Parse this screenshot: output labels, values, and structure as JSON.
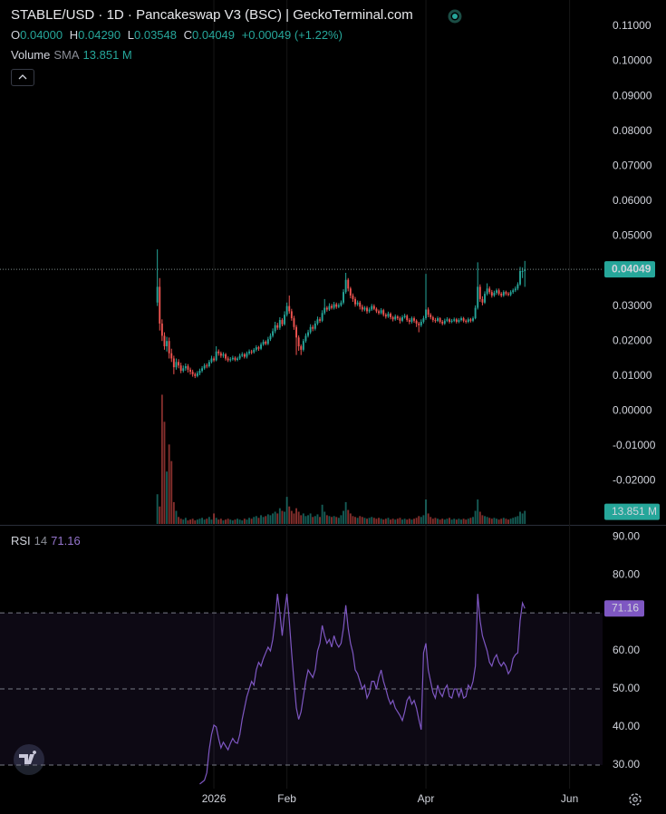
{
  "chart_data": {
    "type": "candlestick",
    "title": "STABLE/USD · 1D · Pancakeswap V3 (BSC) | GeckoTerminal.com",
    "ohlc_legend": [
      [
        "O",
        "0.04000"
      ],
      [
        "H",
        "0.04290"
      ],
      [
        "L",
        "0.03548"
      ],
      [
        "C",
        "0.04049"
      ]
    ],
    "change": "+0.00049 (+1.22%)",
    "volume_title": "Volume",
    "volume_sma_label": "SMA",
    "volume_sma": {
      "value": 13851000,
      "label": "13.851 M"
    },
    "rsi_title": "RSI",
    "rsi_period": 14,
    "up_color": "#26a69a",
    "down_color": "#ef5350",
    "rsi_color": "#7e57c2",
    "xlim": [
      -66.8,
      189
    ],
    "xticks": [
      {
        "value": 24,
        "label": "2026"
      },
      {
        "value": 55,
        "label": "Feb"
      },
      {
        "value": 114,
        "label": "Apr"
      },
      {
        "value": 175,
        "label": "Jun"
      }
    ],
    "ylim": [
      -0.0323,
      0.1175
    ],
    "yticks": [
      {
        "value": 0.11,
        "label": "0.11000"
      },
      {
        "value": 0.1,
        "label": "0.10000"
      },
      {
        "value": 0.09,
        "label": "0.09000"
      },
      {
        "value": 0.08,
        "label": "0.08000"
      },
      {
        "value": 0.07,
        "label": "0.07000"
      },
      {
        "value": 0.06,
        "label": "0.06000"
      },
      {
        "value": 0.05,
        "label": "0.05000"
      },
      {
        "value": 0.04,
        "label": "0.04000"
      },
      {
        "value": 0.03,
        "label": "0.03000"
      },
      {
        "value": 0.02,
        "label": "0.02000"
      },
      {
        "value": 0.01,
        "label": "0.01000"
      },
      {
        "value": 0,
        "label": "0.00000"
      },
      {
        "value": -0.01,
        "label": "-0.01000"
      },
      {
        "value": -0.02,
        "label": "-0.02000"
      }
    ],
    "y2lim": [
      0,
      600000000
    ],
    "rsi_ylim": [
      23.8,
      92.9
    ],
    "rsi_yticks": [
      {
        "value": 90,
        "label": "90.00"
      },
      {
        "value": 80,
        "label": "80.00"
      },
      {
        "value": 70,
        "label": "70.00"
      },
      {
        "value": 60,
        "label": "60.00"
      },
      {
        "value": 50,
        "label": "50.00"
      },
      {
        "value": 40,
        "label": "40.00"
      },
      {
        "value": 30,
        "label": "30.00"
      }
    ],
    "rsi_band": [
      30,
      70
    ],
    "rsi_midline": 50,
    "open": [
      0.031,
      0.0355,
      0.025,
      0.0215,
      0.0185,
      0.02,
      0.0165,
      0.015,
      0.0125,
      0.014,
      0.013,
      0.0115,
      0.0122,
      0.0128,
      0.0118,
      0.0112,
      0.0105,
      0.01,
      0.0108,
      0.0115,
      0.0122,
      0.013,
      0.0128,
      0.014,
      0.015,
      0.0145,
      0.017,
      0.0165,
      0.0158,
      0.0162,
      0.015,
      0.0145,
      0.0148,
      0.0152,
      0.0146,
      0.015,
      0.0158,
      0.0162,
      0.0155,
      0.0165,
      0.017,
      0.0168,
      0.0175,
      0.0182,
      0.0178,
      0.019,
      0.0198,
      0.0192,
      0.0205,
      0.0215,
      0.0228,
      0.0245,
      0.0238,
      0.026,
      0.0248,
      0.0275,
      0.03,
      0.0285,
      0.0265,
      0.024,
      0.021,
      0.0185,
      0.0175,
      0.02,
      0.0215,
      0.0225,
      0.024,
      0.0235,
      0.025,
      0.0262,
      0.0258,
      0.028,
      0.0295,
      0.029,
      0.03,
      0.0295,
      0.0305,
      0.0298,
      0.0302,
      0.031,
      0.034,
      0.0375,
      0.035,
      0.033,
      0.032,
      0.0305,
      0.031,
      0.0298,
      0.029,
      0.0295,
      0.0285,
      0.029,
      0.03,
      0.0292,
      0.0285,
      0.028,
      0.0288,
      0.0275,
      0.027,
      0.0278,
      0.0268,
      0.0262,
      0.027,
      0.0265,
      0.0258,
      0.0268,
      0.0272,
      0.026,
      0.0255,
      0.0265,
      0.0258,
      0.025,
      0.0245,
      0.0255,
      0.0265,
      0.029,
      0.0275,
      0.0268,
      0.026,
      0.0258,
      0.0265,
      0.0255,
      0.025,
      0.0258,
      0.0262,
      0.0255,
      0.0258,
      0.0262,
      0.0255,
      0.026,
      0.0265,
      0.0258,
      0.0255,
      0.0262,
      0.0258,
      0.0265,
      0.0295,
      0.0355,
      0.032,
      0.031,
      0.0335,
      0.035,
      0.034,
      0.033,
      0.0338,
      0.0345,
      0.0335,
      0.033,
      0.034,
      0.0335,
      0.0332,
      0.034,
      0.0345,
      0.035,
      0.0362,
      0.04,
      0.04
    ],
    "high": [
      0.0462,
      0.038,
      0.0262,
      0.0225,
      0.0212,
      0.021,
      0.0178,
      0.0158,
      0.015,
      0.0148,
      0.0138,
      0.013,
      0.0136,
      0.0134,
      0.0124,
      0.0118,
      0.011,
      0.0114,
      0.0121,
      0.0128,
      0.0136,
      0.0136,
      0.0146,
      0.0158,
      0.0156,
      0.0185,
      0.0176,
      0.017,
      0.0168,
      0.0166,
      0.0156,
      0.0154,
      0.0158,
      0.0156,
      0.0155,
      0.0164,
      0.0168,
      0.0166,
      0.017,
      0.0176,
      0.0175,
      0.018,
      0.0188,
      0.0186,
      0.0196,
      0.0204,
      0.0202,
      0.0212,
      0.0222,
      0.0236,
      0.0255,
      0.0252,
      0.0268,
      0.0265,
      0.0285,
      0.031,
      0.033,
      0.0292,
      0.0272,
      0.0246,
      0.0216,
      0.019,
      0.0206,
      0.0222,
      0.0232,
      0.0248,
      0.0246,
      0.0258,
      0.027,
      0.0268,
      0.0288,
      0.032,
      0.03,
      0.0308,
      0.0306,
      0.0312,
      0.031,
      0.0308,
      0.0316,
      0.0348,
      0.0395,
      0.038,
      0.0355,
      0.0336,
      0.0326,
      0.0316,
      0.0315,
      0.0304,
      0.03,
      0.03,
      0.0296,
      0.0306,
      0.0305,
      0.0296,
      0.029,
      0.0294,
      0.0292,
      0.028,
      0.0284,
      0.0282,
      0.0272,
      0.0276,
      0.0274,
      0.027,
      0.0274,
      0.0278,
      0.0276,
      0.0265,
      0.027,
      0.027,
      0.0262,
      0.0255,
      0.0262,
      0.0272,
      0.0392,
      0.0296,
      0.028,
      0.0272,
      0.0266,
      0.027,
      0.0268,
      0.026,
      0.0264,
      0.0268,
      0.0266,
      0.0263,
      0.0267,
      0.0266,
      0.0265,
      0.027,
      0.0269,
      0.0262,
      0.0267,
      0.0266,
      0.027,
      0.0302,
      0.0425,
      0.0362,
      0.0328,
      0.0342,
      0.0365,
      0.0356,
      0.0346,
      0.0344,
      0.035,
      0.035,
      0.034,
      0.0345,
      0.0344,
      0.034,
      0.0345,
      0.035,
      0.0356,
      0.0368,
      0.0412,
      0.041,
      0.0429
    ],
    "low": [
      0.03,
      0.023,
      0.02,
      0.0175,
      0.017,
      0.015,
      0.014,
      0.0105,
      0.0118,
      0.0122,
      0.0108,
      0.011,
      0.0115,
      0.011,
      0.0104,
      0.0098,
      0.0094,
      0.0096,
      0.0102,
      0.011,
      0.0118,
      0.0122,
      0.0124,
      0.0136,
      0.014,
      0.0142,
      0.0158,
      0.0152,
      0.0152,
      0.0144,
      0.014,
      0.014,
      0.0144,
      0.0142,
      0.0142,
      0.0146,
      0.0154,
      0.015,
      0.015,
      0.016,
      0.0162,
      0.0164,
      0.017,
      0.0172,
      0.0174,
      0.0186,
      0.0188,
      0.0188,
      0.02,
      0.021,
      0.0222,
      0.0232,
      0.0232,
      0.0242,
      0.0244,
      0.027,
      0.0278,
      0.0258,
      0.0232,
      0.016,
      0.0172,
      0.016,
      0.017,
      0.0195,
      0.021,
      0.022,
      0.0228,
      0.023,
      0.0245,
      0.0252,
      0.0254,
      0.0275,
      0.0284,
      0.0286,
      0.029,
      0.029,
      0.0292,
      0.0294,
      0.0298,
      0.0305,
      0.0335,
      0.0342,
      0.0322,
      0.0312,
      0.0298,
      0.03,
      0.029,
      0.0284,
      0.0285,
      0.0278,
      0.028,
      0.0286,
      0.0288,
      0.028,
      0.0275,
      0.0276,
      0.027,
      0.0264,
      0.0266,
      0.0262,
      0.0256,
      0.0258,
      0.026,
      0.025,
      0.0254,
      0.0264,
      0.0255,
      0.0248,
      0.025,
      0.0252,
      0.024,
      0.0225,
      0.024,
      0.025,
      0.026,
      0.0268,
      0.0262,
      0.0254,
      0.0252,
      0.0254,
      0.025,
      0.0245,
      0.0246,
      0.0254,
      0.025,
      0.0251,
      0.0254,
      0.025,
      0.0251,
      0.0256,
      0.0253,
      0.025,
      0.0251,
      0.0253,
      0.0254,
      0.0262,
      0.029,
      0.0312,
      0.0302,
      0.0306,
      0.033,
      0.0334,
      0.0324,
      0.0326,
      0.0332,
      0.033,
      0.0325,
      0.0326,
      0.033,
      0.0328,
      0.0328,
      0.0335,
      0.034,
      0.0345,
      0.0358,
      0.038,
      0.03548
    ],
    "close": [
      0.0355,
      0.025,
      0.0215,
      0.0185,
      0.02,
      0.0165,
      0.015,
      0.0125,
      0.014,
      0.013,
      0.0115,
      0.0122,
      0.0128,
      0.0118,
      0.0112,
      0.0105,
      0.01,
      0.0108,
      0.0115,
      0.0122,
      0.013,
      0.0128,
      0.014,
      0.015,
      0.0145,
      0.017,
      0.0165,
      0.0158,
      0.0162,
      0.015,
      0.0145,
      0.0148,
      0.0152,
      0.0146,
      0.015,
      0.0158,
      0.0162,
      0.0155,
      0.0165,
      0.017,
      0.0168,
      0.0175,
      0.0182,
      0.0178,
      0.019,
      0.0198,
      0.0192,
      0.0205,
      0.0215,
      0.0228,
      0.0245,
      0.0238,
      0.026,
      0.0248,
      0.0275,
      0.03,
      0.0285,
      0.0265,
      0.024,
      0.021,
      0.0185,
      0.0175,
      0.02,
      0.0215,
      0.0225,
      0.024,
      0.0235,
      0.025,
      0.0262,
      0.0258,
      0.028,
      0.0295,
      0.029,
      0.03,
      0.0295,
      0.0305,
      0.0298,
      0.0302,
      0.031,
      0.034,
      0.0375,
      0.035,
      0.033,
      0.032,
      0.0305,
      0.031,
      0.0298,
      0.029,
      0.0295,
      0.0285,
      0.029,
      0.03,
      0.0292,
      0.0285,
      0.028,
      0.0288,
      0.0275,
      0.027,
      0.0278,
      0.0268,
      0.0262,
      0.027,
      0.0265,
      0.0258,
      0.0268,
      0.0272,
      0.026,
      0.0255,
      0.0265,
      0.0258,
      0.025,
      0.0245,
      0.0255,
      0.0265,
      0.029,
      0.0275,
      0.0268,
      0.026,
      0.0258,
      0.0265,
      0.0255,
      0.025,
      0.0258,
      0.0262,
      0.0255,
      0.0258,
      0.0262,
      0.0255,
      0.026,
      0.0265,
      0.0258,
      0.0255,
      0.0262,
      0.0258,
      0.0265,
      0.0295,
      0.0355,
      0.032,
      0.031,
      0.0335,
      0.035,
      0.034,
      0.033,
      0.0338,
      0.0345,
      0.0335,
      0.033,
      0.034,
      0.0335,
      0.0332,
      0.034,
      0.0345,
      0.035,
      0.0362,
      0.04,
      0.04,
      0.04049
    ],
    "volume": [
      34000000.0,
      20000000.0,
      148000000.0,
      117000000.0,
      60000000.0,
      91000000.0,
      72000000.0,
      25000000.0,
      15000000.0,
      8000000.0,
      6000000.0,
      5000000.0,
      7000000.0,
      4000000.0,
      5000000.0,
      6000000.0,
      4000000.0,
      5000000.0,
      6000000.0,
      7000000.0,
      5000000.0,
      6000000.0,
      8000000.0,
      5000000.0,
      12000000.0,
      7000000.0,
      5000000.0,
      6000000.0,
      4000000.0,
      5000000.0,
      6000000.0,
      5000000.0,
      4000000.0,
      5000000.0,
      6000000.0,
      5000000.0,
      4000000.0,
      6000000.0,
      5000000.0,
      7000000.0,
      6000000.0,
      8000000.0,
      9000000.0,
      7000000.0,
      10000000.0,
      8000000.0,
      9000000.0,
      11000000.0,
      10000000.0,
      12000000.0,
      14000000.0,
      12000000.0,
      18000000.0,
      15000000.0,
      14000000.0,
      31000000.0,
      20000000.0,
      15000000.0,
      12000000.0,
      18000000.0,
      14000000.0,
      10000000.0,
      12000000.0,
      9000000.0,
      10000000.0,
      12000000.0,
      8000000.0,
      9000000.0,
      11000000.0,
      8000000.0,
      22000000.0,
      14000000.0,
      10000000.0,
      9000000.0,
      8000000.0,
      9000000.0,
      8000000.0,
      7000000.0,
      10000000.0,
      15000000.0,
      25000000.0,
      16000000.0,
      12000000.0,
      9000000.0,
      8000000.0,
      7000000.0,
      9000000.0,
      8000000.0,
      7000000.0,
      6000000.0,
      7000000.0,
      8000000.0,
      7000000.0,
      6000000.0,
      7000000.0,
      6000000.0,
      5000000.0,
      6000000.0,
      7000000.0,
      5000000.0,
      6000000.0,
      5000000.0,
      6000000.0,
      7000000.0,
      5000000.0,
      6000000.0,
      5000000.0,
      6000000.0,
      5000000.0,
      6000000.0,
      7000000.0,
      9000000.0,
      8000000.0,
      10000000.0,
      28000000.0,
      12000000.0,
      8000000.0,
      6000000.0,
      7000000.0,
      6000000.0,
      5000000.0,
      6000000.0,
      5000000.0,
      6000000.0,
      7000000.0,
      5000000.0,
      6000000.0,
      5000000.0,
      6000000.0,
      5000000.0,
      6000000.0,
      5000000.0,
      6000000.0,
      7000000.0,
      8000000.0,
      15000000.0,
      28000000.0,
      14000000.0,
      10000000.0,
      9000000.0,
      8000000.0,
      7000000.0,
      6000000.0,
      7000000.0,
      6000000.0,
      5000000.0,
      6000000.0,
      7000000.0,
      6000000.0,
      5000000.0,
      6000000.0,
      7000000.0,
      8000000.0,
      9000000.0,
      14000000.0,
      12000000.0,
      15000000.0
    ],
    "rsi": [
      null,
      null,
      null,
      null,
      null,
      null,
      null,
      null,
      null,
      null,
      null,
      null,
      null,
      null,
      null,
      null,
      null,
      null,
      25.0,
      25.5,
      26.0,
      28.0,
      34.0,
      38.0,
      40.5,
      40.0,
      37.0,
      34.5,
      36.0,
      35.0,
      34.0,
      35.7,
      37.0,
      36.0,
      35.7,
      38.0,
      42.0,
      45.0,
      48.0,
      50.0,
      52.0,
      51.0,
      55.0,
      57.0,
      56.0,
      58.0,
      59.5,
      61.0,
      60.0,
      63.0,
      68.0,
      75.0,
      70.0,
      64.0,
      70.0,
      75.0,
      68.0,
      59.5,
      52.0,
      45.0,
      42.0,
      44.0,
      48.0,
      52.0,
      55.0,
      54.0,
      53.0,
      55.0,
      60.0,
      62.0,
      66.7,
      64.0,
      62.0,
      63.0,
      61.0,
      64.0,
      62.0,
      61.0,
      62.0,
      66.0,
      72.0,
      66.0,
      62.0,
      59.5,
      55.0,
      54.0,
      52.0,
      50.0,
      51.0,
      47.6,
      49.0,
      52.0,
      52.0,
      50.0,
      53.0,
      55.0,
      52.0,
      50.0,
      47.6,
      46.0,
      47.0,
      45.0,
      44.0,
      43.0,
      41.7,
      44.0,
      47.0,
      48.0,
      46.0,
      47.0,
      45.0,
      42.0,
      39.3,
      59.5,
      62.0,
      55.0,
      52.0,
      49.0,
      47.6,
      51.0,
      49.0,
      48.0,
      50.0,
      51.0,
      48.0,
      47.6,
      50.0,
      50.0,
      48.0,
      50.0,
      47.6,
      48.0,
      51.0,
      50.0,
      52.0,
      56.0,
      75.0,
      68.0,
      64.0,
      62.0,
      60.0,
      57.0,
      56.0,
      58.0,
      59.0,
      57.0,
      56.0,
      57.0,
      56.0,
      54.0,
      55.0,
      58.0,
      59.0,
      59.5,
      68.0,
      72.6,
      71.16
    ]
  }
}
